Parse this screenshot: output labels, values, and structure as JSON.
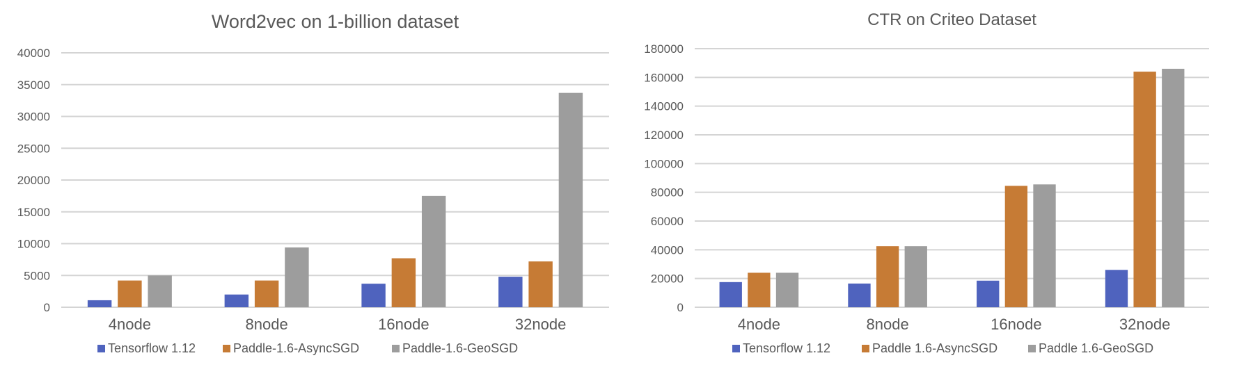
{
  "chart_data": [
    {
      "type": "bar",
      "title": "Word2vec on 1-billion dataset",
      "xlabel": "",
      "ylabel": "",
      "categories": [
        "4node",
        "8node",
        "16node",
        "32node"
      ],
      "series": [
        {
          "name": "Tensorflow 1.12",
          "color": "#4f63be",
          "values": [
            1100,
            2000,
            3700,
            4800
          ]
        },
        {
          "name": "Paddle-1.6-AsyncSGD",
          "color": "#c67b35",
          "values": [
            4200,
            4200,
            7700,
            7200
          ]
        },
        {
          "name": "Paddle-1.6-GeoSGD",
          "color": "#9d9d9d",
          "values": [
            5000,
            9400,
            17500,
            33700
          ]
        }
      ],
      "ylim": [
        0,
        40000
      ],
      "yticks": [
        "0",
        "5000",
        "10000",
        "15000",
        "20000",
        "25000",
        "30000",
        "35000",
        "40000"
      ],
      "grid": true,
      "legend": "bottom"
    },
    {
      "type": "bar",
      "title": "CTR on Criteo Dataset",
      "xlabel": "",
      "ylabel": "",
      "categories": [
        "4node",
        "8node",
        "16node",
        "32node"
      ],
      "series": [
        {
          "name": "Tensorflow 1.12",
          "color": "#4f63be",
          "values": [
            17500,
            16500,
            18500,
            26000
          ]
        },
        {
          "name": "Paddle 1.6-AsyncSGD",
          "color": "#c67b35",
          "values": [
            24000,
            42500,
            84500,
            164000
          ]
        },
        {
          "name": "Paddle 1.6-GeoSGD",
          "color": "#9d9d9d",
          "values": [
            24000,
            42500,
            85500,
            166000
          ]
        }
      ],
      "ylim": [
        0,
        180000
      ],
      "yticks": [
        "0",
        "20000",
        "40000",
        "60000",
        "80000",
        "100000",
        "120000",
        "140000",
        "160000",
        "180000"
      ],
      "grid": true,
      "legend": "bottom"
    }
  ]
}
